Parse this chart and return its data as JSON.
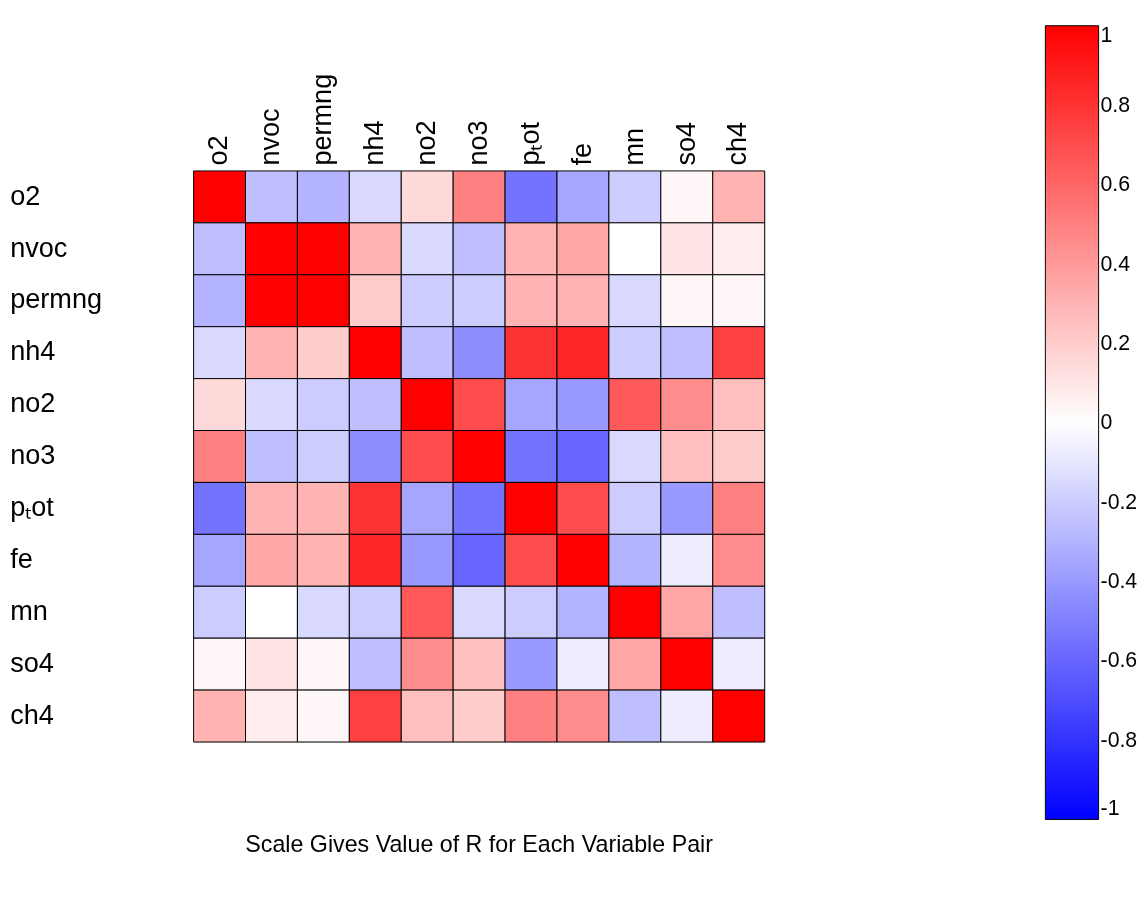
{
  "chart_data": {
    "type": "heatmap",
    "categories": [
      "o2",
      "nvoc",
      "permng",
      "nh4",
      "no2",
      "no3",
      "pₜot",
      "fe",
      "mn",
      "so4",
      "ch4"
    ],
    "y_categories": [
      "o2",
      "nvoc",
      "permng",
      "nh4",
      "no2",
      "no3",
      "pₜot",
      "fe",
      "mn",
      "so4",
      "ch4"
    ],
    "cells": [
      [
        1,
        -0.25,
        -0.3,
        -0.15,
        0.15,
        0.5,
        -0.55,
        -0.35,
        -0.2,
        0.03,
        0.3
      ],
      [
        -0.25,
        1,
        1,
        0.3,
        -0.15,
        -0.25,
        0.3,
        0.35,
        0,
        0.1,
        0.07
      ],
      [
        -0.3,
        1,
        1,
        0.2,
        -0.2,
        -0.2,
        0.3,
        0.3,
        -0.15,
        0.03,
        0.03
      ],
      [
        -0.15,
        0.3,
        0.2,
        1,
        -0.25,
        -0.45,
        0.8,
        0.85,
        -0.2,
        -0.25,
        0.75
      ],
      [
        0.15,
        -0.15,
        -0.2,
        -0.25,
        1,
        0.7,
        -0.35,
        -0.4,
        0.65,
        0.45,
        0.25
      ],
      [
        0.5,
        -0.25,
        -0.2,
        -0.45,
        0.7,
        1,
        -0.55,
        -0.6,
        -0.15,
        0.25,
        0.2
      ],
      [
        -0.55,
        0.3,
        0.3,
        0.8,
        -0.35,
        -0.55,
        1,
        0.7,
        -0.2,
        -0.4,
        0.5
      ],
      [
        -0.35,
        0.35,
        0.3,
        0.85,
        -0.4,
        -0.6,
        0.7,
        1,
        -0.3,
        -0.07,
        0.45
      ],
      [
        -0.2,
        0,
        -0.15,
        -0.2,
        0.65,
        -0.15,
        -0.2,
        -0.3,
        1,
        0.35,
        -0.25
      ],
      [
        0.03,
        0.1,
        0.03,
        -0.25,
        0.45,
        0.25,
        -0.4,
        -0.07,
        0.35,
        1,
        -0.07
      ],
      [
        0.3,
        0.07,
        0.03,
        0.75,
        0.25,
        0.2,
        0.5,
        0.45,
        -0.25,
        -0.07,
        1
      ]
    ],
    "clim": [
      -1,
      1
    ],
    "cticks": [
      -1,
      -0.8,
      -0.6,
      -0.4,
      -0.2,
      0,
      0.2,
      0.4,
      0.6,
      0.8,
      1
    ],
    "colors": [
      "#0000ff",
      "#ffffff",
      "#ff0000"
    ],
    "annotations": [
      "Scale Gives Value of R for Each Variable Pair"
    ]
  }
}
